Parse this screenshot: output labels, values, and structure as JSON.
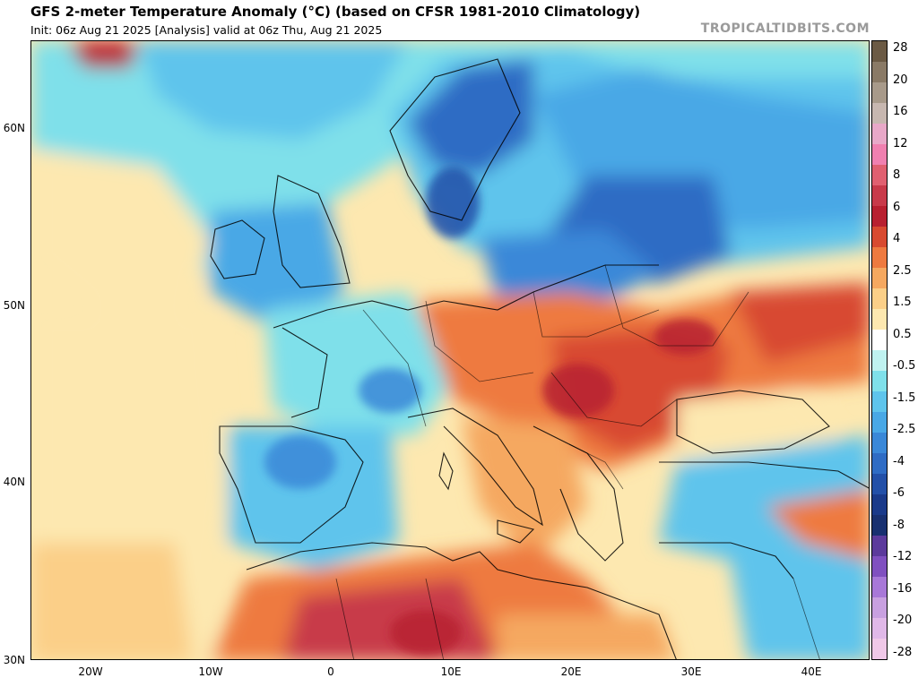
{
  "header": {
    "title": "GFS 2-meter Temperature Anomaly (°C) (based on CFSR 1981-2010 Climatology)",
    "subtitle": "Init: 06z Aug 21 2025   [Analysis]   valid at 06z Thu, Aug 21 2025",
    "brand": "TROPICALTIDBITS.COM"
  },
  "map": {
    "lat_labels": [
      "60N",
      "50N",
      "40N",
      "30N"
    ],
    "lon_labels": [
      "20W",
      "10W",
      "0",
      "10E",
      "20E",
      "30E",
      "40E"
    ],
    "lat_range": [
      30,
      65
    ],
    "lon_range": [
      -25,
      45
    ]
  },
  "colorbar": {
    "labels": [
      "28",
      "20",
      "16",
      "12",
      "8",
      "6",
      "4",
      "2.5",
      "1.5",
      "0.5",
      "-0.5",
      "-1.5",
      "-2.5",
      "-4",
      "-6",
      "-8",
      "-12",
      "-16",
      "-20",
      "-28"
    ],
    "colors": [
      "#6b5a44",
      "#8a7a66",
      "#a89a8a",
      "#c7b7b0",
      "#e8a8c8",
      "#f080b0",
      "#e06070",
      "#c83a4a",
      "#b82030",
      "#d84a30",
      "#ee7a40",
      "#f5a860",
      "#fbcf88",
      "#fde8b0",
      "#ffffff",
      "#bff2f0",
      "#7fe0ea",
      "#5ec4ec",
      "#49a8e6",
      "#3a88d8",
      "#2f6cc4",
      "#2350a8",
      "#1a3a8a",
      "#183070",
      "#5c3a9c",
      "#8050c0",
      "#a878d8",
      "#c8a0e0",
      "#e0b8e8",
      "#f0c8e8"
    ]
  }
}
